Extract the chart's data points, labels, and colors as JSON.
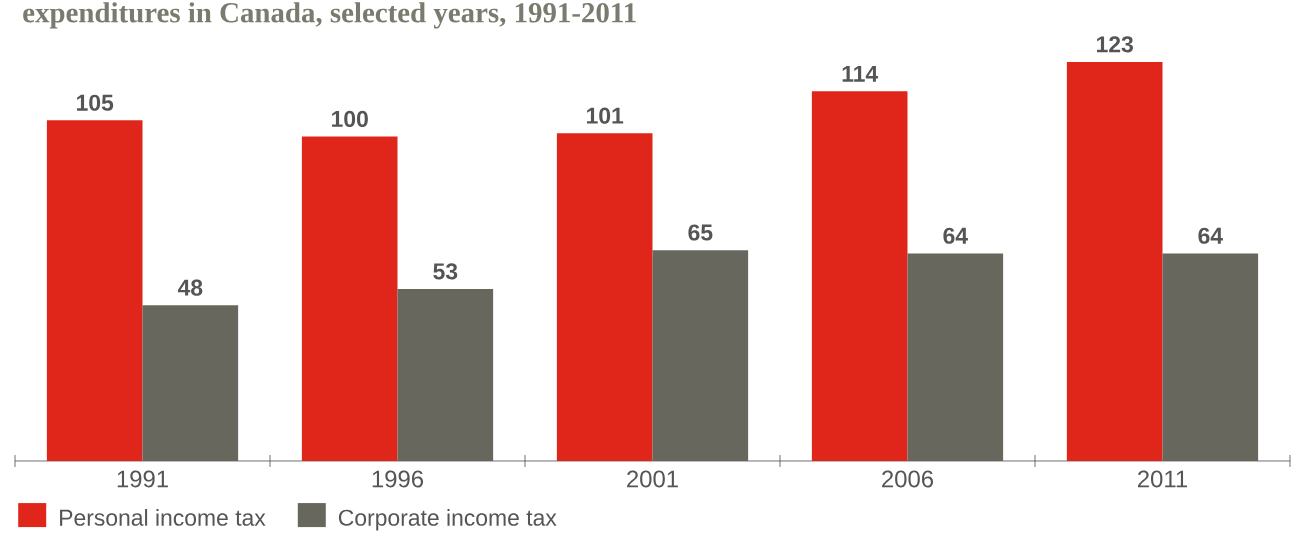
{
  "chart_data": {
    "type": "bar",
    "title": "expenditures in Canada, selected years, 1991-2011",
    "categories": [
      "1991",
      "1996",
      "2001",
      "2006",
      "2011"
    ],
    "series": [
      {
        "name": "Personal income tax",
        "color": "#e0261a",
        "values": [
          105,
          100,
          101,
          114,
          123
        ]
      },
      {
        "name": "Corporate income tax",
        "color": "#67675d",
        "values": [
          48,
          53,
          65,
          64,
          64
        ]
      }
    ],
    "data_labels": true,
    "legend": "bottom left"
  }
}
